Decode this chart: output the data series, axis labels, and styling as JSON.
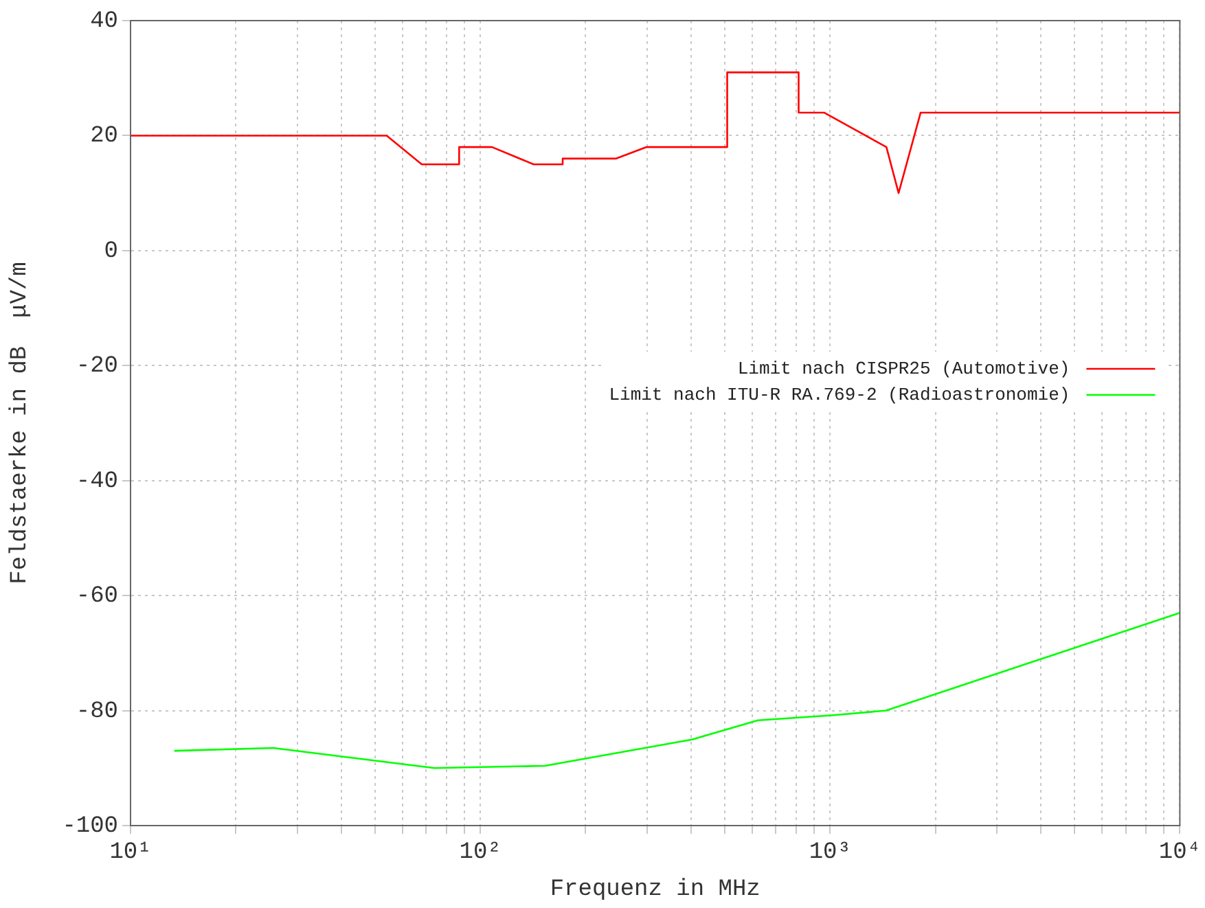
{
  "chart_data": {
    "type": "line",
    "xlabel": "Frequenz in MHz",
    "ylabel": "Feldstaerke in dB  μV/m",
    "log": "x",
    "xlim": [
      10,
      10000
    ],
    "ylim": [
      -100,
      40
    ],
    "xticks": [
      {
        "value": 10,
        "label": "10¹"
      },
      {
        "value": 20,
        "label": null
      },
      {
        "value": 30,
        "label": null
      },
      {
        "value": 40,
        "label": null
      },
      {
        "value": 50,
        "label": null
      },
      {
        "value": 60,
        "label": null
      },
      {
        "value": 70,
        "label": null
      },
      {
        "value": 80,
        "label": null
      },
      {
        "value": 90,
        "label": null
      },
      {
        "value": 100,
        "label": "10²"
      },
      {
        "value": 200,
        "label": null
      },
      {
        "value": 300,
        "label": null
      },
      {
        "value": 400,
        "label": null
      },
      {
        "value": 500,
        "label": null
      },
      {
        "value": 600,
        "label": null
      },
      {
        "value": 700,
        "label": null
      },
      {
        "value": 800,
        "label": null
      },
      {
        "value": 900,
        "label": null
      },
      {
        "value": 1000,
        "label": "10³"
      },
      {
        "value": 2000,
        "label": null
      },
      {
        "value": 3000,
        "label": null
      },
      {
        "value": 4000,
        "label": null
      },
      {
        "value": 5000,
        "label": null
      },
      {
        "value": 6000,
        "label": null
      },
      {
        "value": 7000,
        "label": null
      },
      {
        "value": 8000,
        "label": null
      },
      {
        "value": 9000,
        "label": null
      },
      {
        "value": 10000,
        "label": "10⁴"
      }
    ],
    "yticks": [
      -100,
      -80,
      -60,
      -40,
      -20,
      0,
      20,
      40
    ],
    "grid": true,
    "legend": "right",
    "marker": "none",
    "line_style": "solid",
    "series": [
      {
        "name": "Limit nach CISPR25 (Automotive)",
        "color": "#ff0000",
        "x": [
          10,
          54,
          68,
          87,
          87,
          108,
          142,
          172,
          172,
          244,
          298,
          508,
          508,
          813,
          813,
          961,
          1449,
          1570,
          1815,
          10000
        ],
        "values": [
          20,
          20,
          15,
          15,
          18,
          18,
          15,
          15,
          16,
          16,
          18,
          18,
          31,
          31,
          24,
          24,
          18,
          10,
          24,
          24
        ]
      },
      {
        "name": "Limit nach ITU-R RA.769-2 (Radioastronomie)",
        "color": "#00ff00",
        "x": [
          13.4,
          25.6,
          74,
          153,
          405,
          622,
          1023,
          1445,
          10000
        ],
        "values": [
          -87,
          -86.5,
          -90,
          -89.6,
          -85,
          -81.7,
          -80.8,
          -80,
          -63
        ]
      }
    ]
  }
}
